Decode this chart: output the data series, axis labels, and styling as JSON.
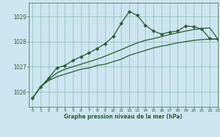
{
  "background_color": "#cce5f0",
  "plot_bg_color": "#cce5f0",
  "grid_color": "#88bbaa",
  "line_color": "#2d5e35",
  "title": "Graphe pression niveau de la mer (hPa)",
  "xlim": [
    -0.5,
    23
  ],
  "ylim": [
    1025.4,
    1029.55
  ],
  "yticks": [
    1026,
    1027,
    1028,
    1029
  ],
  "xticks": [
    0,
    1,
    2,
    3,
    4,
    5,
    6,
    7,
    8,
    9,
    10,
    11,
    12,
    13,
    14,
    15,
    16,
    17,
    18,
    19,
    20,
    21,
    22,
    23
  ],
  "series": [
    {
      "x": [
        0,
        1,
        2,
        3,
        4,
        5,
        6,
        7,
        8,
        9,
        10,
        11,
        12,
        13,
        14,
        15,
        16,
        17,
        18,
        19,
        20,
        21,
        22,
        23
      ],
      "y": [
        1025.75,
        1026.2,
        1026.45,
        1026.6,
        1026.7,
        1026.8,
        1026.9,
        1026.95,
        1027.05,
        1027.1,
        1027.2,
        1027.3,
        1027.45,
        1027.55,
        1027.65,
        1027.75,
        1027.82,
        1027.88,
        1027.95,
        1028.0,
        1028.05,
        1028.08,
        1028.1,
        1028.1
      ],
      "marker": null,
      "linewidth": 1.0
    },
    {
      "x": [
        0,
        1,
        2,
        3,
        4,
        5,
        6,
        7,
        8,
        9,
        10,
        11,
        12,
        13,
        14,
        15,
        16,
        17,
        18,
        19,
        20,
        21,
        22,
        23
      ],
      "y": [
        1025.75,
        1026.2,
        1026.5,
        1026.75,
        1026.9,
        1027.0,
        1027.1,
        1027.2,
        1027.3,
        1027.42,
        1027.55,
        1027.68,
        1027.82,
        1027.95,
        1028.05,
        1028.12,
        1028.2,
        1028.28,
        1028.35,
        1028.42,
        1028.48,
        1028.52,
        1028.55,
        1028.1
      ],
      "marker": null,
      "linewidth": 1.0
    },
    {
      "x": [
        0,
        1,
        2,
        3,
        4,
        5,
        6,
        7,
        8,
        9,
        10,
        11,
        12,
        13,
        14,
        15,
        16,
        17,
        18,
        19,
        20,
        21,
        22,
        23
      ],
      "y": [
        1025.75,
        1026.2,
        1026.55,
        1026.95,
        1027.05,
        1027.25,
        1027.4,
        1027.55,
        1027.72,
        1027.92,
        1028.2,
        1028.72,
        1029.2,
        1029.05,
        1028.65,
        1028.42,
        1028.3,
        1028.38,
        1028.42,
        1028.62,
        1028.6,
        1028.5,
        1028.12,
        1028.1
      ],
      "marker": "D",
      "markersize": 2.5,
      "linewidth": 1.0
    }
  ]
}
